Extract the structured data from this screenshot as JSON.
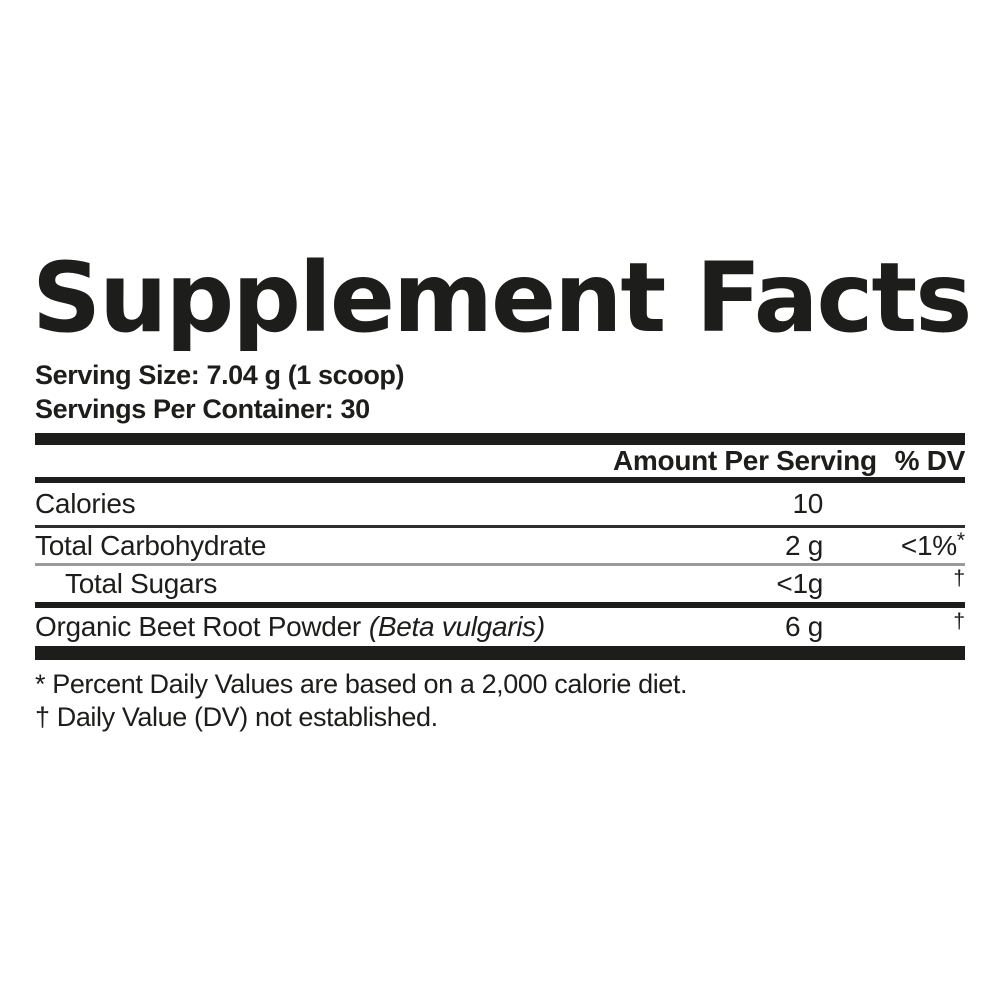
{
  "title": "Supplement Facts",
  "serving": {
    "size": "Serving Size: 7.04 g (1 scoop)",
    "per_container": "Servings Per Container: 30"
  },
  "table": {
    "header": {
      "amount": "Amount Per Serving",
      "dv": "% DV"
    },
    "rows": [
      {
        "name": "Calories",
        "amount": "10",
        "dv": "",
        "dv_sup": ""
      },
      {
        "name": "Total Carbohydrate",
        "amount": "2 g",
        "dv": "<1%",
        "dv_sup": "*"
      },
      {
        "name": "Total Sugars",
        "amount": "<1g",
        "dv": "",
        "dv_sup": "†"
      },
      {
        "name": "Organic Beet Root Powder",
        "name_italic": "(Beta vulgaris)",
        "amount": "6 g",
        "dv": "",
        "dv_sup": "†"
      }
    ]
  },
  "footnotes": [
    "* Percent Daily Values are based on a 2,000 calorie diet.",
    "† Daily Value (DV) not established."
  ],
  "colors": {
    "text": "#1d1d1b",
    "bar": "#1d1d1b",
    "rule_dark": "#2e2e2e",
    "rule_light": "#9b9b9b",
    "background": "#ffffff"
  }
}
